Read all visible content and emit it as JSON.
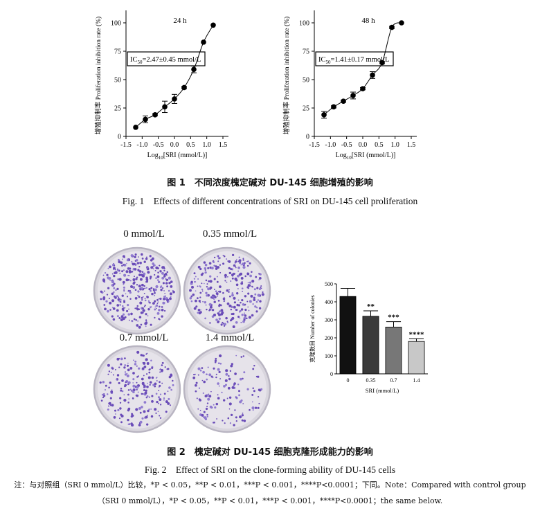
{
  "figure1": {
    "caption_cn": "图 1　不同浓度槐定碱对 DU-145 细胞增殖的影响",
    "caption_en": "Fig. 1　Effects of different concentrations of SRI on DU-145 cell proliferation"
  },
  "figure2": {
    "caption_cn": "图 2　槐定碱对 DU-145 细胞克隆形成能力的影响",
    "caption_en": "Fig. 2　Effect of SRI on the clone-forming ability of DU-145 cells",
    "dish_labels": [
      "0 mmol/L",
      "0.35 mmol/L",
      "0.7 mmol/L",
      "1.4 mmol/L"
    ]
  },
  "note_line1": "注：与对照组（SRI 0 mmol/L）比较，*P < 0.05，**P < 0.01，***P < 0.001，****P<0.0001；下同。Note：Compared with control group",
  "note_line2": "（SRI 0 mmol/L），*P < 0.05，**P < 0.01，***P < 0.001，****P<0.0001；the same below.",
  "chart_data": [
    {
      "type": "scatter",
      "title": "24 h",
      "xlabel": "Log10[SRI (mmol/L)]",
      "xlabel_main": "Log",
      "xlabel_sub": "10",
      "xlabel_rest": "[SRI (mmol/L)]",
      "ylabel": "增殖抑制率 Proliferation inhibition rate (%)",
      "xlim": [
        -1.5,
        1.5
      ],
      "ylim": [
        0,
        100
      ],
      "xticks": [
        "-1.5",
        "-1.0",
        "-0.5",
        "0.0",
        "0.5",
        "1.0",
        "1.5"
      ],
      "yticks": [
        "0",
        "25",
        "50",
        "75",
        "100"
      ],
      "annotation": "IC50=2.47±0.45 mmol/L",
      "annotation_main": "IC",
      "annotation_sub": "50",
      "annotation_rest": "=2.47±0.45 mmol/L",
      "points": [
        {
          "x": -1.2,
          "y": 8,
          "err": 0
        },
        {
          "x": -0.9,
          "y": 15,
          "err": 3
        },
        {
          "x": -0.6,
          "y": 19,
          "err": 1
        },
        {
          "x": -0.3,
          "y": 26,
          "err": 5
        },
        {
          "x": 0.0,
          "y": 33,
          "err": 4
        },
        {
          "x": 0.3,
          "y": 43,
          "err": 1
        },
        {
          "x": 0.6,
          "y": 59,
          "err": 3
        },
        {
          "x": 0.9,
          "y": 83,
          "err": 0
        },
        {
          "x": 1.2,
          "y": 98,
          "err": 0
        }
      ],
      "fit_curve": true
    },
    {
      "type": "scatter",
      "title": "48 h",
      "xlabel": "Log10[SRI (mmol/L)]",
      "xlabel_main": "Log",
      "xlabel_sub": "10",
      "xlabel_rest": "[SRI (mmol/L)]",
      "ylabel": "增殖抑制率 Proliferation inhibition rate (%)",
      "xlim": [
        -1.5,
        1.5
      ],
      "ylim": [
        0,
        100
      ],
      "xticks": [
        "-1.5",
        "-1.0",
        "-0.5",
        "0.0",
        "0.5",
        "1.0",
        "1.5"
      ],
      "yticks": [
        "0",
        "25",
        "50",
        "75",
        "100"
      ],
      "annotation": "IC50=1.41±0.17 mmol/L",
      "annotation_main": "IC",
      "annotation_sub": "50",
      "annotation_rest": "=1.41±0.17 mmol/L",
      "points": [
        {
          "x": -1.2,
          "y": 19,
          "err": 3
        },
        {
          "x": -0.9,
          "y": 26,
          "err": 1
        },
        {
          "x": -0.6,
          "y": 31,
          "err": 1
        },
        {
          "x": -0.3,
          "y": 36,
          "err": 3
        },
        {
          "x": 0.0,
          "y": 42,
          "err": 1
        },
        {
          "x": 0.3,
          "y": 54,
          "err": 3
        },
        {
          "x": 0.6,
          "y": 65,
          "err": 1
        },
        {
          "x": 0.9,
          "y": 96,
          "err": 1
        },
        {
          "x": 1.2,
          "y": 100,
          "err": 0
        }
      ],
      "fit_curve": true
    },
    {
      "type": "bar",
      "xlabel": "SRI (mmol/L)",
      "ylabel": "克隆数目 Number of colonies",
      "categories": [
        "0",
        "0.35",
        "0.7",
        "1.4"
      ],
      "values": [
        430,
        320,
        260,
        180
      ],
      "errors": [
        45,
        30,
        30,
        15
      ],
      "significance": [
        "",
        "**",
        "***",
        "****"
      ],
      "colors": [
        "#111111",
        "#3a3a3a",
        "#777777",
        "#c8c8c8"
      ],
      "ylim": [
        0,
        500
      ],
      "yticks": [
        "0",
        "100",
        "200",
        "300",
        "400",
        "500"
      ]
    }
  ]
}
